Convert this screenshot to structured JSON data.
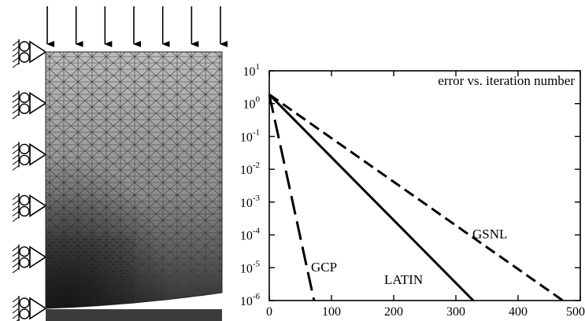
{
  "figure": {
    "left_panel": {
      "load_arrow_count": 7,
      "support_count": 6,
      "mesh_fill_top": "#bdbdbd",
      "mesh_fill_bottom": "#303030",
      "mesh_line_color": "#3a3a3a",
      "foundation_color": "#3c3c3c"
    }
  },
  "chart_data": {
    "type": "line",
    "title": "error vs. iteration number",
    "xlabel": "",
    "ylabel": "",
    "xlim": [
      0,
      500
    ],
    "ylim_exponent": [
      -6,
      1
    ],
    "yscale": "log",
    "xticks": [
      "0",
      "100",
      "200",
      "300",
      "400",
      "500"
    ],
    "yticks": [
      {
        "base": "10",
        "exp": "1"
      },
      {
        "base": "10",
        "exp": "0"
      },
      {
        "base": "10",
        "exp": "-1"
      },
      {
        "base": "10",
        "exp": "-2"
      },
      {
        "base": "10",
        "exp": "-3"
      },
      {
        "base": "10",
        "exp": "-4"
      },
      {
        "base": "10",
        "exp": "-5"
      },
      {
        "base": "10",
        "exp": "-6"
      }
    ],
    "grid": false,
    "series": [
      {
        "name": "GCP",
        "style": "long-dash",
        "x": [
          0,
          72
        ],
        "y": [
          1.9,
          1e-06
        ]
      },
      {
        "name": "LATIN",
        "style": "solid",
        "x": [
          0,
          328
        ],
        "y": [
          1.9,
          1e-06
        ]
      },
      {
        "name": "GSNL",
        "style": "dash",
        "x": [
          0,
          472
        ],
        "y": [
          1.9,
          1e-06
        ]
      }
    ],
    "annotations": [
      {
        "text": "GCP",
        "series": "GCP"
      },
      {
        "text": "LATIN",
        "series": "LATIN"
      },
      {
        "text": "GSNL",
        "series": "GSNL"
      }
    ]
  }
}
